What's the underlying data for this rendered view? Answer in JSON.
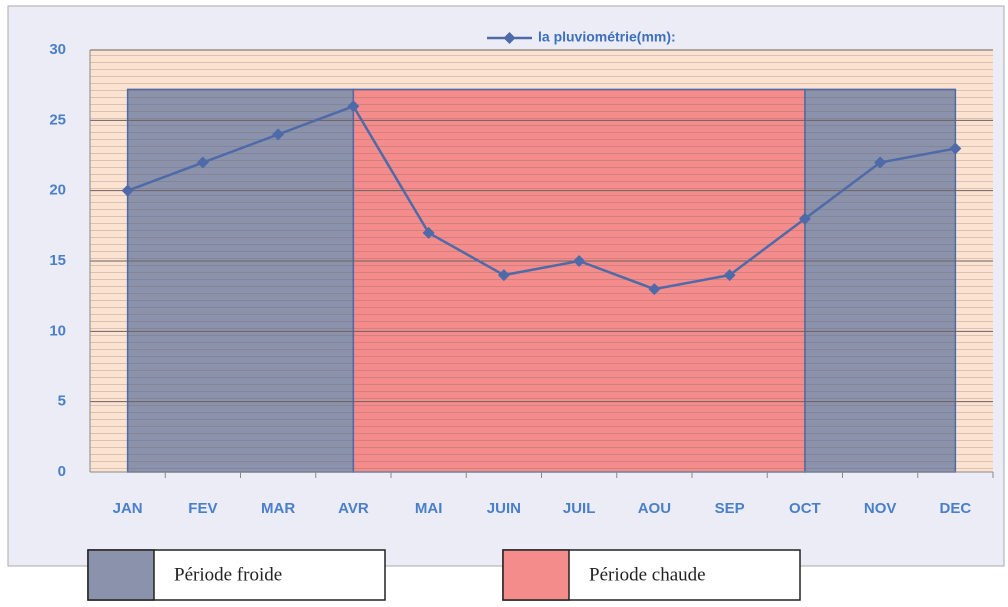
{
  "chart_data": {
    "type": "line",
    "categories": [
      "JAN",
      "FEV",
      "MAR",
      "AVR",
      "MAI",
      "JUIN",
      "JUIL",
      "AOU",
      "SEP",
      "OCT",
      "NOV",
      "DEC"
    ],
    "series": [
      {
        "name": "la pluviométrie(mm):",
        "color": "#4f6aa8",
        "values": [
          20,
          22,
          24,
          26,
          17,
          14,
          15,
          13,
          14,
          18,
          22,
          23
        ]
      }
    ],
    "ylim": [
      0,
      30
    ],
    "yticks": [
      0,
      5,
      10,
      15,
      20,
      25,
      30
    ],
    "grid": true,
    "periods": [
      {
        "name": "Période froide",
        "color": "#8b93ac",
        "spans": [
          {
            "from": "JAN",
            "to": "AVR",
            "top": 27.2
          },
          {
            "from": "OCT",
            "to": "DEC",
            "top": 27.2
          }
        ]
      },
      {
        "name": "Période chaude",
        "color": "#f48c8c",
        "spans": [
          {
            "from": "AVR",
            "to": "OCT",
            "top": 27.2
          }
        ]
      }
    ]
  }
}
